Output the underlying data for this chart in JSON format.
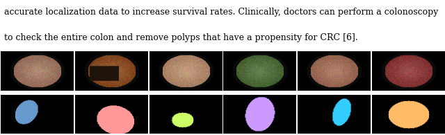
{
  "text_lines": [
    "accurate localization data to increase survival rates. Clinically, doctors can perform a colonoscopy",
    "to check the entire colon and remove polyps that have a propensity for CRC [6]."
  ],
  "text_color": "#000000",
  "text_fontsize": 9,
  "background_color": "#ffffff",
  "num_cols": 6,
  "top_row_bg": "#000000",
  "mask_colors": [
    "#6699cc",
    "#ff9999",
    "#ccff66",
    "#cc99ff",
    "#33ccff",
    "#ffbb66"
  ],
  "figure_width": 6.4,
  "figure_height": 1.95
}
